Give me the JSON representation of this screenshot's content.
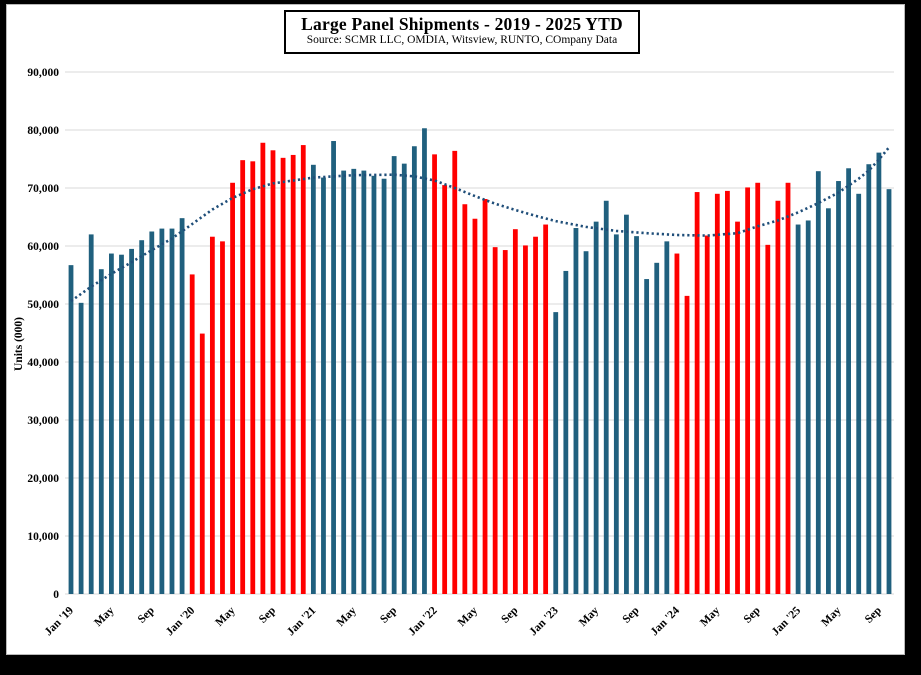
{
  "title": {
    "text": "Large Panel Shipments - 2019 - 2025 YTD",
    "source_line": "Source: SCMR LLC, OMDIA, Witsview, RUNTO, COmpany Data"
  },
  "y_axis_title": "Units (000)",
  "colors": {
    "bar_blue": "#20607E",
    "bar_red": "#FF0000",
    "grid": "#D9D9D9",
    "trend": "#1F4E79",
    "background": "#FFFFFF",
    "frame": "#000000"
  },
  "chart_data": {
    "type": "bar",
    "title": "Large Panel Shipments - 2019 - 2025 YTD",
    "subtitle": "Source: SCMR LLC, OMDIA, Witsview, RUNTO, COmpany Data",
    "ylabel": "Units (000)",
    "xlabel": "",
    "ylim": [
      0,
      90000
    ],
    "grid": true,
    "legend_position": "none",
    "x_start": "Jan 2019",
    "x_end": "Oct 2025",
    "x_tick_every_n_months": 4,
    "x_tick_labels": [
      "Jan '19",
      "May",
      "Sep",
      "Jan '20",
      "May",
      "Sep",
      "Jan '21",
      "May",
      "Sep",
      "Jan '22",
      "May",
      "Sep",
      "Jan '23",
      "May",
      "Sep",
      "Jan '24",
      "May",
      "Sep",
      "Jan '25",
      "May",
      "Sep"
    ],
    "y_ticks": [
      0,
      10000,
      20000,
      30000,
      40000,
      50000,
      60000,
      70000,
      80000,
      90000
    ],
    "series": [
      {
        "name": "2019",
        "color": "#20607E",
        "months": "Jan-Dec 2019",
        "values": [
          56700,
          50200,
          62000,
          56000,
          58700,
          58500,
          59500,
          61000,
          62500,
          63000,
          63000,
          64800
        ]
      },
      {
        "name": "2020",
        "color": "#FF0000",
        "months": "Jan-Dec 2020",
        "values": [
          55100,
          44900,
          61600,
          60800,
          70900,
          74800,
          74600,
          77800,
          76500,
          75200,
          75700,
          77400
        ]
      },
      {
        "name": "2021",
        "color": "#20607E",
        "months": "Jan-Dec 2021",
        "values": [
          74000,
          71800,
          78100,
          73000,
          73300,
          73000,
          72100,
          71600,
          75500,
          74200,
          77200,
          80300
        ]
      },
      {
        "name": "2022",
        "color": "#FF0000",
        "months": "Jan-Dec 2022",
        "values": [
          75800,
          70500,
          76400,
          67200,
          64700,
          68100,
          59800,
          59300,
          62900,
          60100,
          61600,
          63700
        ]
      },
      {
        "name": "2023",
        "color": "#20607E",
        "months": "Jan-Dec 2023",
        "values": [
          48600,
          55700,
          63100,
          59100,
          64200,
          67800,
          62000,
          65400,
          61700,
          54300,
          57100,
          60800
        ]
      },
      {
        "name": "2024",
        "color": "#FF0000",
        "months": "Jan-Dec 2024",
        "values": [
          58700,
          51400,
          69300,
          61800,
          69000,
          69500,
          64200,
          70100,
          70900,
          60200,
          67800,
          70900
        ]
      },
      {
        "name": "2025",
        "color": "#20607E",
        "months": "Jan-Oct 2025",
        "values": [
          63700,
          64400,
          72900,
          66500,
          71200,
          73400,
          69000,
          74100,
          76100,
          69800
        ]
      }
    ],
    "trendline": {
      "style": "dotted",
      "color": "#1F4E79",
      "points_month_value": [
        [
          0,
          50500
        ],
        [
          2,
          53000
        ],
        [
          4,
          55200
        ],
        [
          6,
          57200
        ],
        [
          8,
          59300
        ],
        [
          10,
          61300
        ],
        [
          12,
          63800
        ],
        [
          14,
          66300
        ],
        [
          16,
          68300
        ],
        [
          18,
          69800
        ],
        [
          20,
          70800
        ],
        [
          24,
          71800
        ],
        [
          28,
          72200
        ],
        [
          32,
          72300
        ],
        [
          34,
          72000
        ],
        [
          36,
          71300
        ],
        [
          38,
          70000
        ],
        [
          40,
          68600
        ],
        [
          42,
          67300
        ],
        [
          44,
          66200
        ],
        [
          46,
          65200
        ],
        [
          48,
          64300
        ],
        [
          51,
          63300
        ],
        [
          54,
          62600
        ],
        [
          57,
          62200
        ],
        [
          60,
          61900
        ],
        [
          63,
          61800
        ],
        [
          66,
          62200
        ],
        [
          68,
          63400
        ],
        [
          70,
          64400
        ],
        [
          72,
          65800
        ],
        [
          74,
          67400
        ],
        [
          76,
          69200
        ],
        [
          78,
          71600
        ],
        [
          79,
          73000
        ],
        [
          80,
          74900
        ],
        [
          81,
          77000
        ]
      ]
    }
  }
}
